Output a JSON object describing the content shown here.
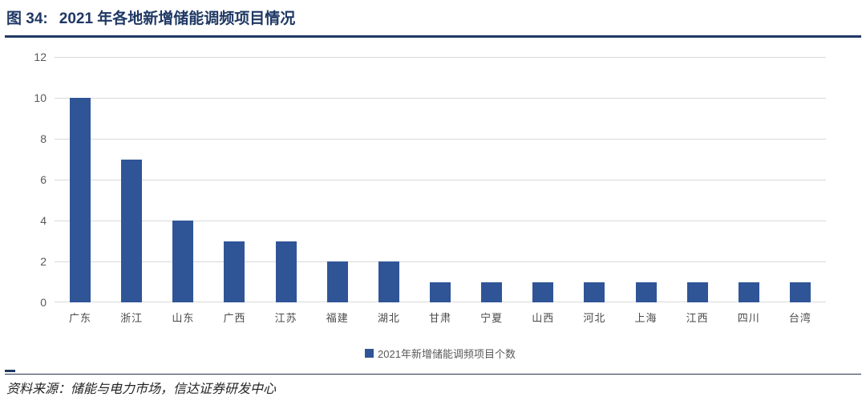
{
  "figure": {
    "number_label": "图 34:",
    "title": "2021 年各地新增储能调频项目情况"
  },
  "chart_data": {
    "type": "bar",
    "title": "2021 年各地新增储能调频项目情况",
    "categories": [
      "广东",
      "浙江",
      "山东",
      "广西",
      "江苏",
      "福建",
      "湖北",
      "甘肃",
      "宁夏",
      "山西",
      "河北",
      "上海",
      "江西",
      "四川",
      "台湾"
    ],
    "values": [
      10,
      7,
      4,
      3,
      3,
      2,
      2,
      1,
      1,
      1,
      1,
      1,
      1,
      1,
      1
    ],
    "series": [
      {
        "name": "2021年新增储能调频项目个数",
        "values": [
          10,
          7,
          4,
          3,
          3,
          2,
          2,
          1,
          1,
          1,
          1,
          1,
          1,
          1,
          1
        ]
      }
    ],
    "legend": [
      "2021年新增储能调频项目个数"
    ],
    "legend_position": "bottom",
    "xlabel": "",
    "ylabel": "",
    "ylim": [
      0,
      12
    ],
    "yticks": [
      0,
      2,
      4,
      6,
      8,
      10,
      12
    ],
    "grid": true
  },
  "footer": {
    "source": "资料来源：储能与电力市场，信达证券研发中心"
  },
  "colors": {
    "bar": "#2F5597",
    "accent_navy": "#1F3864",
    "gridline": "#D9D9D9",
    "axis_text": "#595959",
    "x_label_text": "#4A4A4A",
    "legend_text": "#595959",
    "source_text": "#242424"
  }
}
